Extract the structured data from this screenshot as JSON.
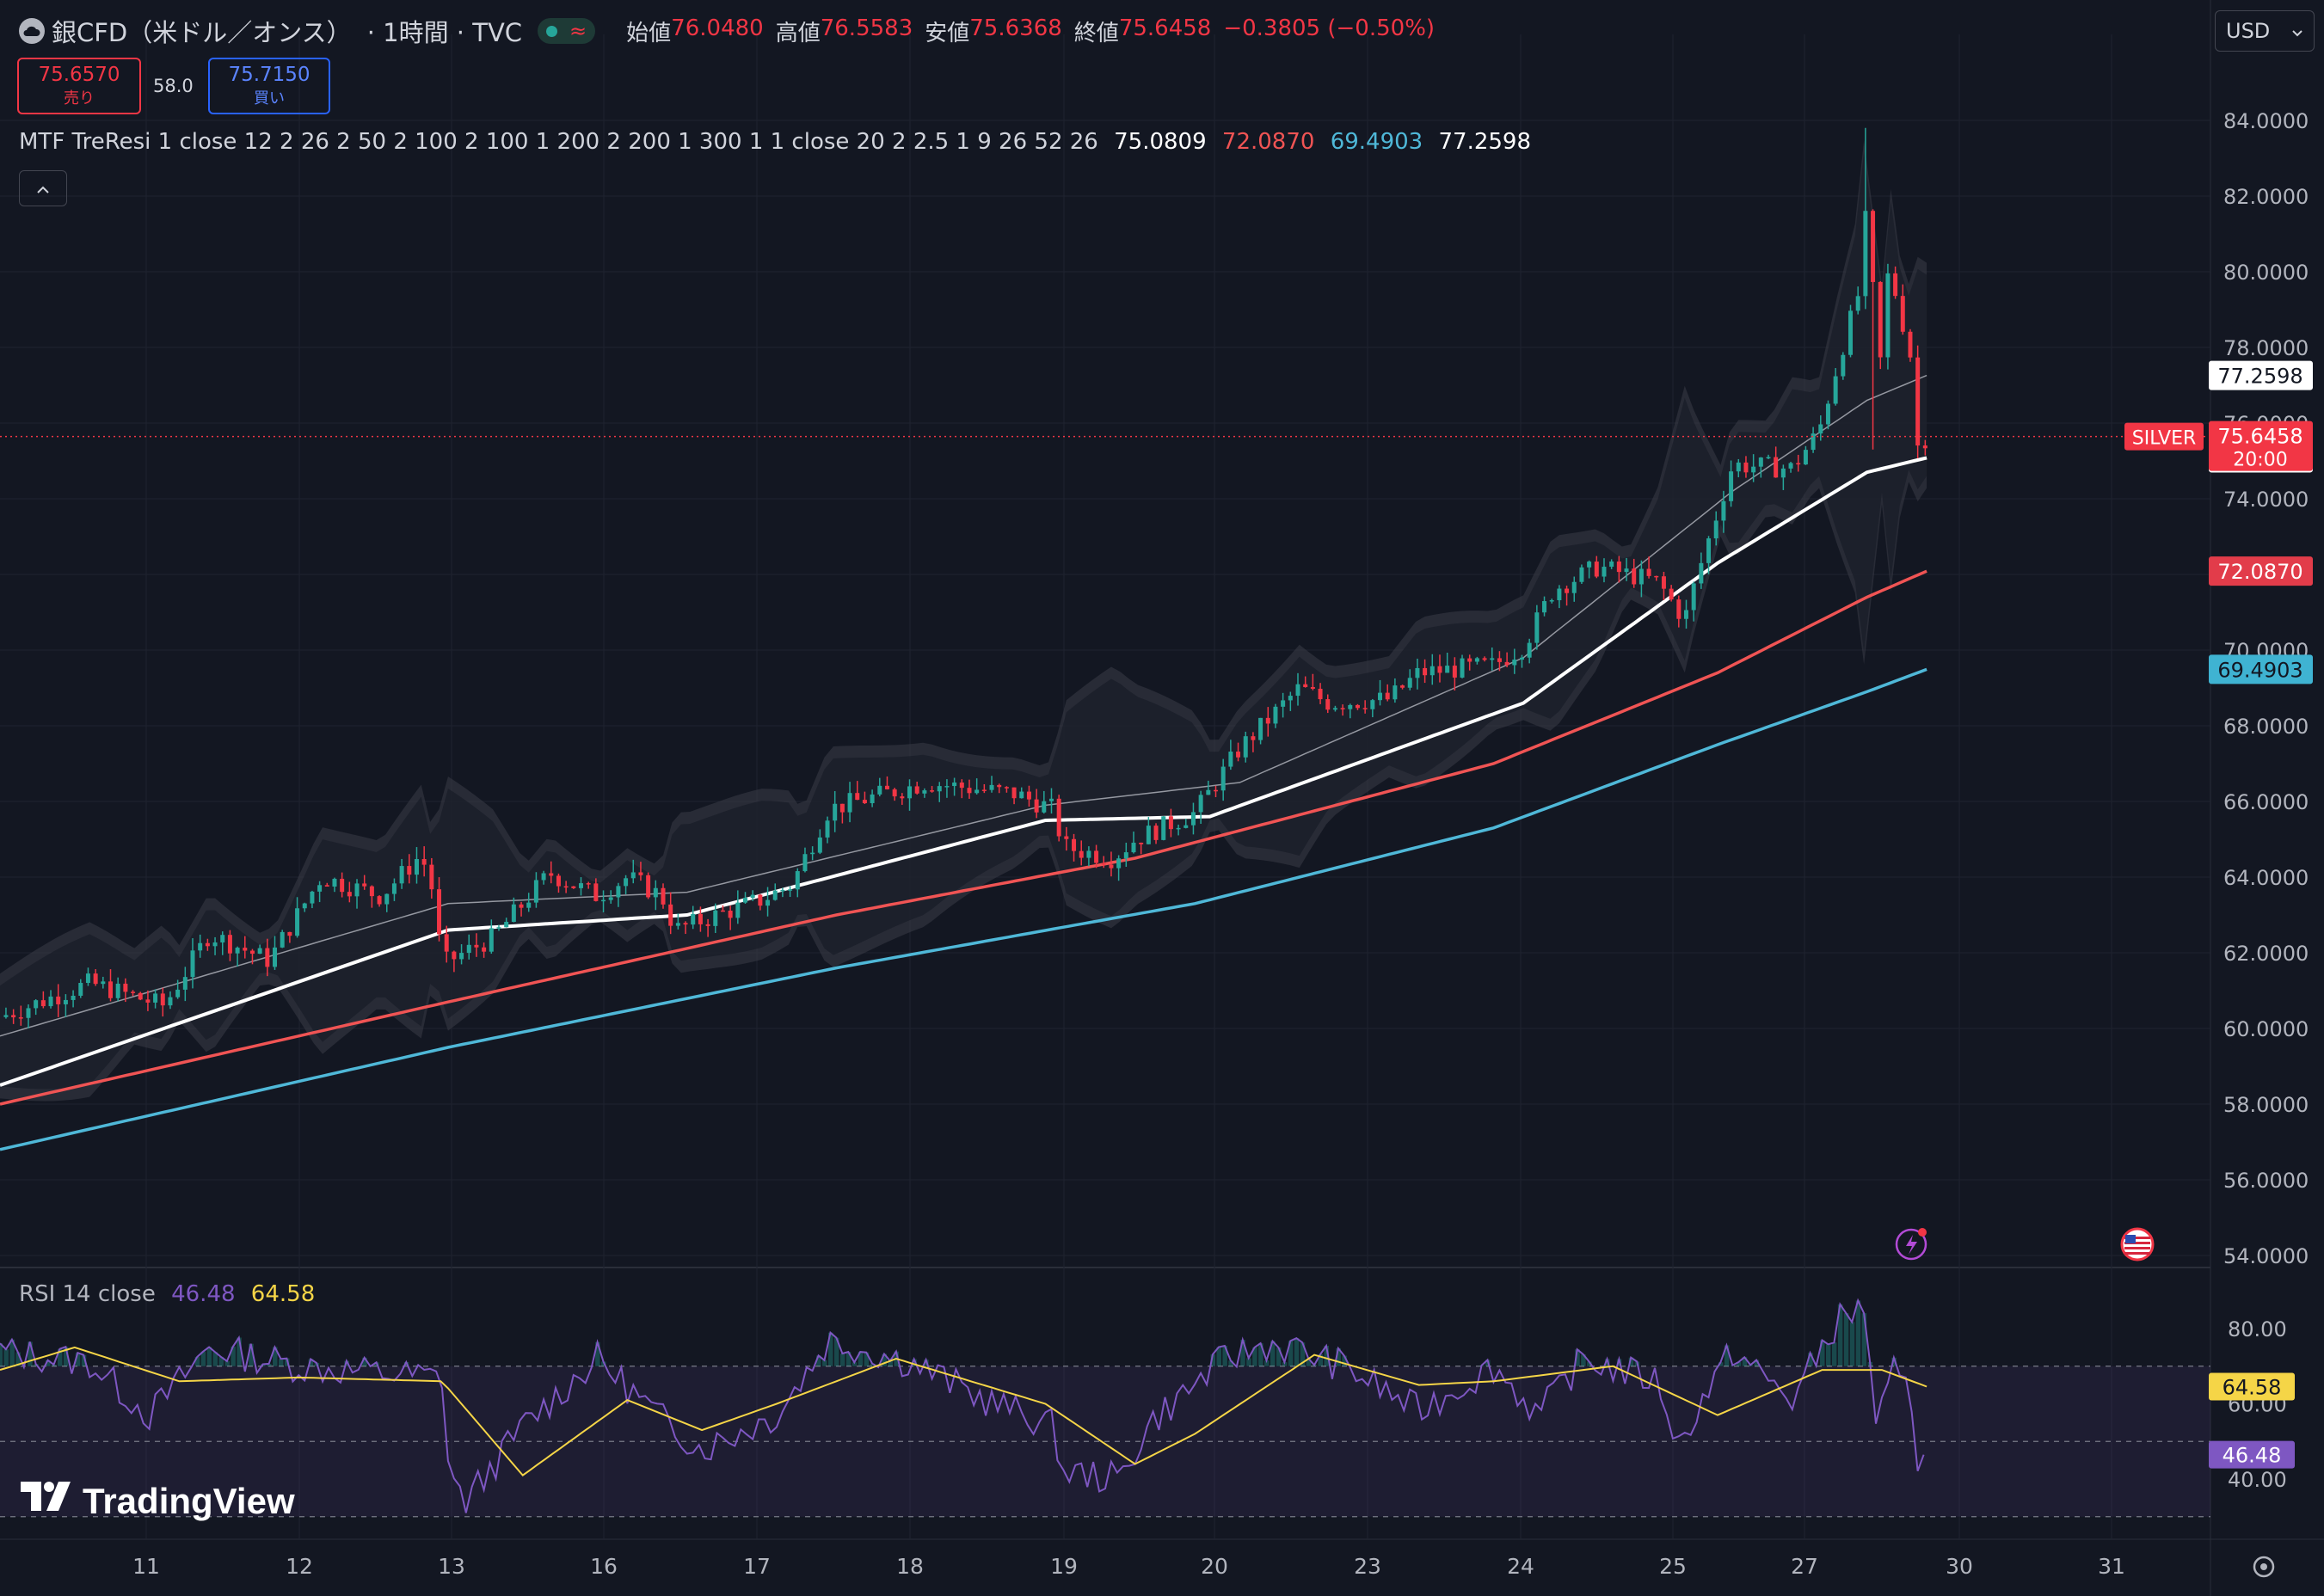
{
  "header": {
    "symbol_title": "銀CFD（米ドル／オンス）",
    "interval": "· 1時間 · TVC",
    "ohlc": [
      {
        "label": "始値",
        "value": "76.0480"
      },
      {
        "label": "高値",
        "value": "76.5583"
      },
      {
        "label": "安値",
        "value": "75.6368"
      },
      {
        "label": "終値",
        "value": "75.6458"
      },
      {
        "label": "",
        "value": "−0.3805 (−0.50%)"
      }
    ],
    "wave_glyph": "≈"
  },
  "currency": {
    "value": "USD",
    "icon": "chevron-down-icon"
  },
  "trade": {
    "sell_price": "75.6570",
    "sell_label": "売り",
    "buy_price": "75.7150",
    "buy_label": "買い",
    "spread": "58.0"
  },
  "indicator_legend": {
    "name": "MTF TreResi 1 close 12 2 26 2 50 2 100 2 100 1 200 2 200 1 300 1 1 close 20 2 2.5 1 9 26 52 26",
    "values": [
      "75.0809",
      "72.0870",
      "69.4903",
      "77.2598"
    ],
    "colors": [
      "#ffffff",
      "#f05454",
      "#4fb8d8",
      "#ffffff"
    ]
  },
  "rsi_legend": {
    "name": "RSI 14 close",
    "rsi": "46.48",
    "ma": "64.58",
    "rsi_color": "#7e57c2",
    "ma_color": "#f5d547"
  },
  "branding": "TradingView",
  "colors": {
    "background": "#131722",
    "up": "#26a69a",
    "down": "#f23645",
    "ma_white": "#ffffff",
    "ma_red": "#f05454",
    "ma_blue": "#4fb8d8",
    "band": "#3a3d47"
  },
  "chart_data": [
    {
      "type": "candlestick",
      "title": "銀CFD（米ドル／オンス） · 1時間 · TVC",
      "x_tick_labels": [
        "11",
        "12",
        "13",
        "16",
        "17",
        "18",
        "19",
        "20",
        "23",
        "24",
        "25",
        "27",
        "30",
        "31"
      ],
      "y_tick_labels": [
        "84.0000",
        "82.0000",
        "80.0000",
        "78.0000",
        "76.0000",
        "74.0000",
        "72.0000",
        "70.0000",
        "68.0000",
        "66.0000",
        "64.0000",
        "62.0000",
        "60.0000",
        "58.0000",
        "56.0000",
        "54.0000"
      ],
      "ylim": [
        54,
        85
      ],
      "grid": true,
      "price_path_keypoints": [
        [
          0,
          60.3
        ],
        [
          60,
          61.2
        ],
        [
          110,
          60.6
        ],
        [
          140,
          62.5
        ],
        [
          180,
          61.8
        ],
        [
          215,
          64.0
        ],
        [
          255,
          63.5
        ],
        [
          282,
          64.6
        ],
        [
          290,
          63.6
        ],
        [
          296,
          61.7
        ],
        [
          330,
          62.4
        ],
        [
          368,
          64.1
        ],
        [
          400,
          63.5
        ],
        [
          420,
          64.0
        ],
        [
          443,
          63.5
        ],
        [
          452,
          62.6
        ],
        [
          480,
          63.0
        ],
        [
          510,
          63.4
        ],
        [
          530,
          63.8
        ],
        [
          555,
          65.8
        ],
        [
          620,
          66.5
        ],
        [
          680,
          66.2
        ],
        [
          705,
          65.8
        ],
        [
          712,
          64.8
        ],
        [
          745,
          64.5
        ],
        [
          760,
          65.0
        ],
        [
          800,
          65.7
        ],
        [
          830,
          67.4
        ],
        [
          870,
          69.0
        ],
        [
          890,
          68.6
        ],
        [
          930,
          68.7
        ],
        [
          950,
          69.4
        ],
        [
          1000,
          69.6
        ],
        [
          1020,
          70.1
        ],
        [
          1040,
          71.6
        ],
        [
          1070,
          72.2
        ],
        [
          1110,
          71.8
        ],
        [
          1128,
          70.8
        ],
        [
          1135,
          71.8
        ],
        [
          1160,
          74.9
        ],
        [
          1200,
          74.8
        ],
        [
          1218,
          75.8
        ],
        [
          1232,
          77.8
        ],
        [
          1245,
          79.5
        ],
        [
          1250,
          81.8
        ],
        [
          1258,
          77.2
        ],
        [
          1265,
          80.3
        ],
        [
          1272,
          78.8
        ],
        [
          1278,
          78.3
        ],
        [
          1284,
          75.4
        ],
        [
          1290,
          75.6458
        ]
      ],
      "series": [
        {
          "name": "75.0809",
          "values_keypoints": [
            [
              0,
              58.5
            ],
            [
              300,
              62.6
            ],
            [
              460,
              63.0
            ],
            [
              700,
              65.5
            ],
            [
              810,
              65.6
            ],
            [
              1020,
              68.6
            ],
            [
              1150,
              72.3
            ],
            [
              1250,
              74.7
            ],
            [
              1290,
              75.0809
            ]
          ]
        },
        {
          "name": "72.0870",
          "values_keypoints": [
            [
              0,
              58.0
            ],
            [
              300,
              60.7
            ],
            [
              560,
              63.0
            ],
            [
              760,
              64.5
            ],
            [
              1000,
              67.0
            ],
            [
              1150,
              69.4
            ],
            [
              1250,
              71.4
            ],
            [
              1290,
              72.087
            ]
          ]
        },
        {
          "name": "69.4903",
          "values_keypoints": [
            [
              0,
              56.8
            ],
            [
              300,
              59.5
            ],
            [
              560,
              61.6
            ],
            [
              800,
              63.3
            ],
            [
              1000,
              65.3
            ],
            [
              1150,
              67.5
            ],
            [
              1250,
              68.9
            ],
            [
              1290,
              69.4903
            ]
          ]
        },
        {
          "name": "77.2598",
          "values_keypoints": [
            [
              0,
              59.8
            ],
            [
              300,
              63.3
            ],
            [
              460,
              63.6
            ],
            [
              700,
              65.9
            ],
            [
              830,
              66.5
            ],
            [
              1020,
              69.8
            ],
            [
              1160,
              74.2
            ],
            [
              1250,
              76.6
            ],
            [
              1290,
              77.2598
            ]
          ]
        }
      ],
      "last_price_label": {
        "symbol": "SILVER",
        "price": "75.6458",
        "countdown": "20:00"
      },
      "price_labels": [
        "77.2598",
        "75.0809",
        "72.0870",
        "69.4903"
      ]
    },
    {
      "type": "line",
      "title": "RSI 14 close",
      "y_tick_labels": [
        "80.00",
        "60.00",
        "40.00"
      ],
      "ylim": [
        30,
        90
      ],
      "levels": [
        70,
        50,
        30
      ],
      "series": [
        {
          "name": "RSI",
          "last": "46.48",
          "values_keypoints": [
            [
              0,
              74
            ],
            [
              60,
              71
            ],
            [
              100,
              57
            ],
            [
              140,
              75
            ],
            [
              200,
              70
            ],
            [
              260,
              68
            ],
            [
              296,
              67
            ],
            [
              300,
              45
            ],
            [
              310,
              33
            ],
            [
              350,
              54
            ],
            [
              400,
              72
            ],
            [
              440,
              57
            ],
            [
              470,
              48
            ],
            [
              520,
              57
            ],
            [
              555,
              77
            ],
            [
              610,
              71
            ],
            [
              660,
              61
            ],
            [
              705,
              54
            ],
            [
              712,
              42
            ],
            [
              750,
              40
            ],
            [
              770,
              55
            ],
            [
              820,
              72
            ],
            [
              850,
              76
            ],
            [
              870,
              74
            ],
            [
              900,
              70
            ],
            [
              950,
              58
            ],
            [
              1000,
              70
            ],
            [
              1030,
              57
            ],
            [
              1060,
              72
            ],
            [
              1110,
              66
            ],
            [
              1125,
              48
            ],
            [
              1135,
              58
            ],
            [
              1160,
              74
            ],
            [
              1200,
              61
            ],
            [
              1230,
              82
            ],
            [
              1250,
              86
            ],
            [
              1255,
              52
            ],
            [
              1268,
              68
            ],
            [
              1280,
              61
            ],
            [
              1284,
              45
            ],
            [
              1290,
              46.48
            ]
          ]
        },
        {
          "name": "RSI MA",
          "last": "64.58",
          "values_keypoints": [
            [
              0,
              69
            ],
            [
              50,
              75
            ],
            [
              120,
              66
            ],
            [
              200,
              67
            ],
            [
              296,
              66
            ],
            [
              350,
              41
            ],
            [
              420,
              61
            ],
            [
              470,
              53
            ],
            [
              520,
              60
            ],
            [
              600,
              72
            ],
            [
              700,
              60
            ],
            [
              760,
              44
            ],
            [
              800,
              52
            ],
            [
              880,
              73
            ],
            [
              950,
              65
            ],
            [
              1000,
              66
            ],
            [
              1080,
              70
            ],
            [
              1150,
              57
            ],
            [
              1220,
              69
            ],
            [
              1260,
              69
            ],
            [
              1290,
              64.58
            ]
          ]
        }
      ],
      "price_labels": [
        "64.58",
        "46.48"
      ]
    }
  ]
}
